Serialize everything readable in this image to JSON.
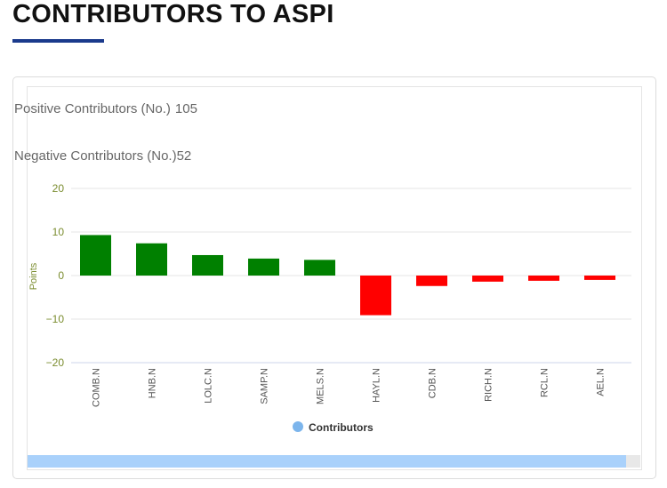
{
  "page_title": "CONTRIBUTORS TO ASPI",
  "stats": {
    "positive_label": "Positive Contributors (No.)",
    "positive_value": "105",
    "negative_label": "Negative Contributors (No.)",
    "negative_value": "52"
  },
  "colors": {
    "positive": "#008000",
    "negative": "#ff0000",
    "legend_dot": "#7cb5ec",
    "axis_text": "#7a8c2e",
    "heading_underline": "#1b3a8c"
  },
  "chart_data": {
    "type": "bar",
    "title": "",
    "xlabel": "",
    "ylabel": "Points",
    "ylim": [
      -20,
      20
    ],
    "yticks": [
      20,
      10,
      0,
      -10,
      -20
    ],
    "ytick_labels": [
      "20",
      "10",
      "0",
      "−10",
      "−20"
    ],
    "categories": [
      "COMB.N",
      "HNB.N",
      "LOLC.N",
      "SAMP.N",
      "MELS.N",
      "HAYL.N",
      "CDB.N",
      "RICH.N",
      "RCL.N",
      "AEL.N"
    ],
    "series": [
      {
        "name": "Contributors",
        "values": [
          9.3,
          7.4,
          4.7,
          3.9,
          3.6,
          -9.1,
          -2.4,
          -1.4,
          -1.2,
          -1.0
        ]
      }
    ],
    "legend": {
      "position": "bottom-center",
      "label": "Contributors"
    }
  }
}
